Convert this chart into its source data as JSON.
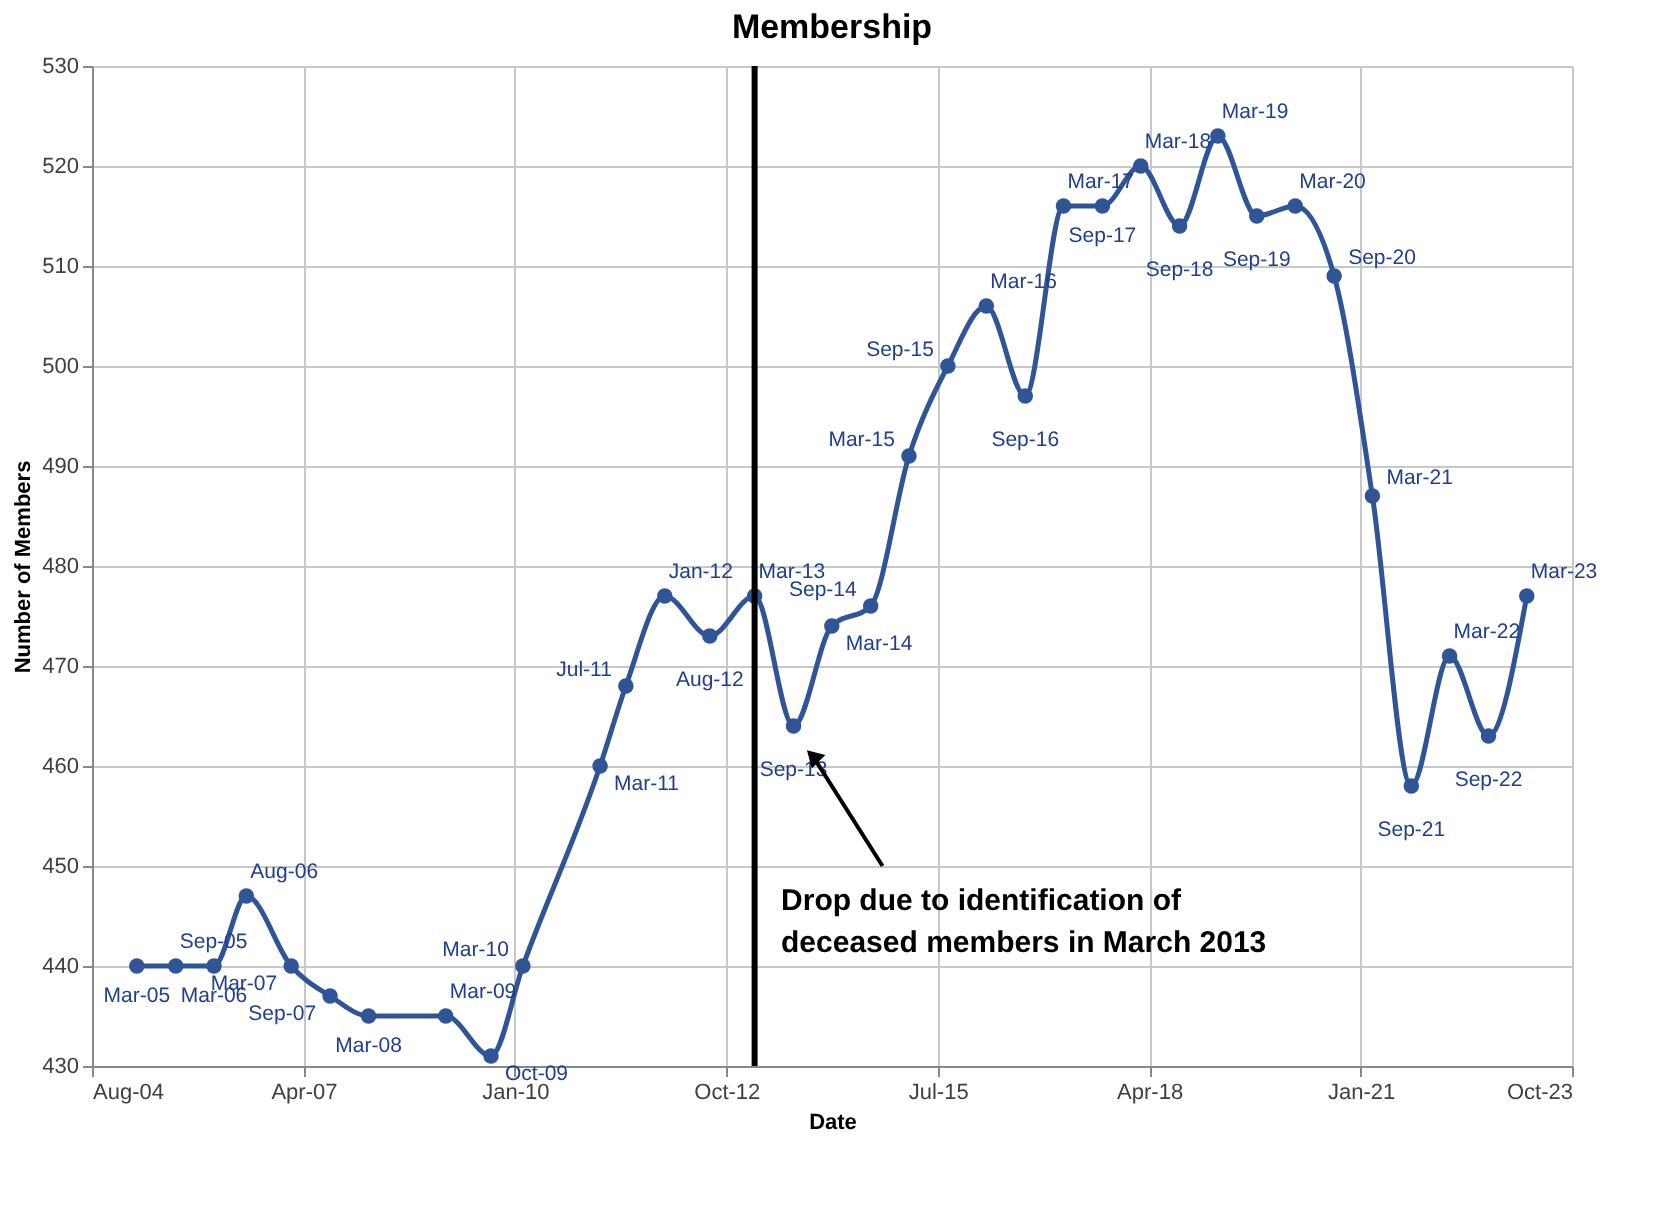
{
  "chart_data": {
    "type": "line",
    "title": "Membership",
    "xlabel": "Date",
    "ylabel": "Number of Members",
    "x": [
      "2005-03",
      "2005-09",
      "2006-03",
      "2006-08",
      "2007-03",
      "2007-09",
      "2008-03",
      "2009-03",
      "2009-10",
      "2010-03",
      "2011-03",
      "2011-07",
      "2012-01",
      "2012-08",
      "2013-03",
      "2013-09",
      "2014-03",
      "2014-09",
      "2015-03",
      "2015-09",
      "2016-03",
      "2016-09",
      "2017-03",
      "2017-09",
      "2018-03",
      "2018-09",
      "2019-03",
      "2019-09",
      "2020-03",
      "2020-09",
      "2021-03",
      "2021-09",
      "2022-03",
      "2022-09",
      "2023-03"
    ],
    "series": [
      {
        "color": "#2f5597",
        "values": [
          440,
          440,
          440,
          447,
          440,
          437,
          435,
          435,
          431,
          440,
          460,
          468,
          477,
          473,
          477,
          464,
          474,
          476,
          491,
          500,
          506,
          497,
          516,
          516,
          520,
          514,
          523,
          515,
          516,
          509,
          487,
          458,
          471,
          463,
          477
        ],
        "value_labels": [
          "Mar-05",
          "Sep-05",
          "Mar-06",
          "Aug-06",
          "Mar-07",
          "Sep-07",
          "Mar-08",
          "Mar-09",
          "Oct-09",
          "Mar-10",
          "Mar-11",
          "Jul-11",
          "Jan-12",
          "Aug-12",
          "Mar-13",
          "Sep-13",
          "Mar-14",
          "Sep-14",
          "Mar-15",
          "Sep-15",
          "Mar-16",
          "Sep-16",
          "Mar-17",
          "Sep-17",
          "Mar-18",
          "Sep-18",
          "Mar-19",
          "Sep-19",
          "Mar-20",
          "Sep-20",
          "Mar-21",
          "Sep-21",
          "Mar-22",
          "Sep-22",
          "Mar-23"
        ]
      }
    ],
    "xlim": [
      "2004-08-01",
      "2023-10-01"
    ],
    "xticks": [
      {
        "value": "2004-08-01",
        "label": "Aug-04"
      },
      {
        "value": "2007-04-28",
        "label": "Apr-07"
      },
      {
        "value": "2010-01-22",
        "label": "Jan-10"
      },
      {
        "value": "2012-10-18",
        "label": "Oct-12"
      },
      {
        "value": "2015-07-15",
        "label": "Jul-15"
      },
      {
        "value": "2018-04-10",
        "label": "Apr-18"
      },
      {
        "value": "2021-01-04",
        "label": "Jan-21"
      },
      {
        "value": "2023-10-01",
        "label": "Oct-23"
      }
    ],
    "ylim": [
      430,
      530
    ],
    "yticks": [
      430,
      440,
      450,
      460,
      470,
      480,
      490,
      500,
      510,
      520,
      530
    ],
    "ref_lines": [
      {
        "axis": "x",
        "value": "2013-03-01",
        "color": "#000000"
      }
    ],
    "annotations": [
      {
        "text": "Drop due to identification of\ndeceased members in March 2013",
        "x": "2013-12",
        "y": 461
      }
    ],
    "grid": true,
    "legend": false,
    "marker": "circle",
    "line_style": "solid"
  }
}
